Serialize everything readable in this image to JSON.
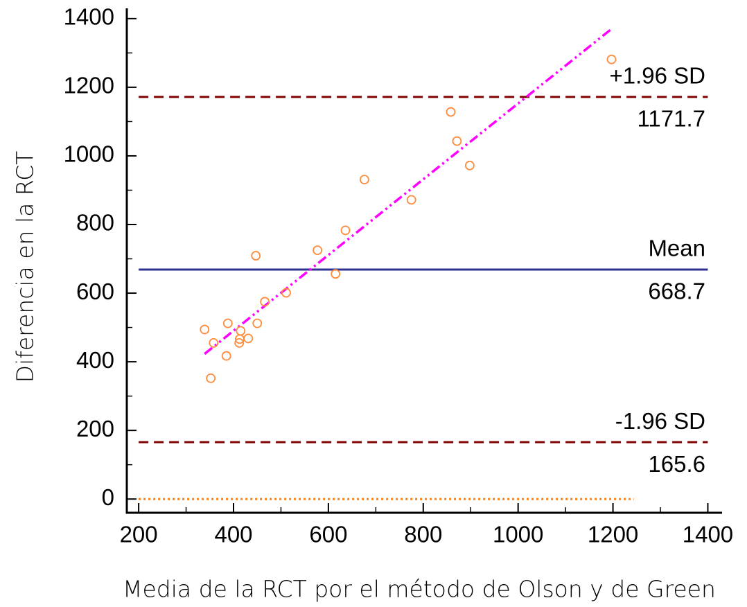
{
  "chart_data": {
    "type": "scatter",
    "x_label": "Media de la RCT por el método de Olson y de Green",
    "y_label": "Diferencia en la RCT",
    "xlim": [
      175,
      1430
    ],
    "ylim": [
      -40,
      1430
    ],
    "xticks": [
      200,
      400,
      600,
      800,
      1000,
      1200,
      1400
    ],
    "yticks": [
      0,
      200,
      400,
      600,
      800,
      1000,
      1200,
      1400
    ],
    "xminorticks": [
      300,
      500,
      700,
      900,
      1100,
      1300
    ],
    "yminorticks": [
      100,
      300,
      500,
      700,
      900,
      1100,
      1300
    ],
    "series": [
      {
        "color": "#ff8c3c",
        "x": [
          339,
          358,
          352,
          388,
          385,
          413,
          415,
          412,
          431,
          447,
          450,
          466,
          511,
          577,
          615,
          636,
          676,
          775,
          858,
          871,
          898,
          1197
        ],
        "values": [
          494,
          455,
          352,
          512,
          417,
          466,
          490,
          455,
          468,
          709,
          512,
          575,
          601,
          725,
          656,
          783,
          931,
          872,
          1128,
          1043,
          972,
          1281
        ]
      }
    ],
    "reference_lines": [
      {
        "label": "+1.96 SD",
        "value": 1171.7,
        "x": [
          200,
          1400
        ],
        "color": "#800000",
        "style": "dashed"
      },
      {
        "label": "Mean",
        "value": 668.7,
        "x": [
          200,
          1400
        ],
        "color": "#2e3192",
        "style": "solid"
      },
      {
        "label": "-1.96 SD",
        "value": 165.6,
        "x": [
          200,
          1400
        ],
        "color": "#800000",
        "style": "dashed"
      },
      {
        "value": 0,
        "x": [
          200,
          1244
        ],
        "color": "#ff7f0e",
        "style": "dotted"
      }
    ],
    "regression_line": {
      "x": [
        339,
        1197
      ],
      "y": [
        423,
        1370
      ],
      "color": "#ff00ff"
    }
  }
}
